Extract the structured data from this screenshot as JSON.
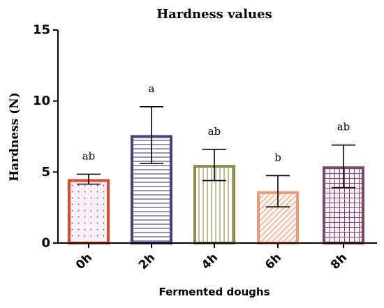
{
  "chart_data": {
    "type": "bar",
    "title": "Hardness values",
    "xlabel": "Fermented doughs",
    "ylabel": "Hardness (N)",
    "ylim": [
      0,
      15
    ],
    "yticks": [
      0,
      5,
      10,
      15
    ],
    "grid": false,
    "categories": [
      "0h",
      "2h",
      "4h",
      "6h",
      "8h"
    ],
    "values": [
      4.5,
      7.6,
      5.5,
      3.65,
      5.4
    ],
    "error_low": [
      4.15,
      5.6,
      4.4,
      2.55,
      3.9
    ],
    "error_high": [
      4.85,
      9.6,
      6.6,
      4.75,
      6.9
    ],
    "significance": [
      "ab",
      "a",
      "ab",
      "b",
      "ab"
    ],
    "colors": {
      "0h": {
        "stroke": "#d94a2e",
        "pattern": "dots",
        "fill_tint": "#fff0fa"
      },
      "2h": {
        "stroke": "#4a3f7a",
        "pattern": "horizontal-lines",
        "fill_tint": "#ffffff"
      },
      "4h": {
        "stroke": "#8a8a4a",
        "pattern": "vertical-lines",
        "fill_tint": "#ffffff"
      },
      "6h": {
        "stroke": "#e89a7a",
        "pattern": "diagonal-lines",
        "fill_tint": "#fff4f0"
      },
      "8h": {
        "stroke": "#7a4a6a",
        "pattern": "grid",
        "fill_tint": "#fff0fa"
      }
    }
  }
}
